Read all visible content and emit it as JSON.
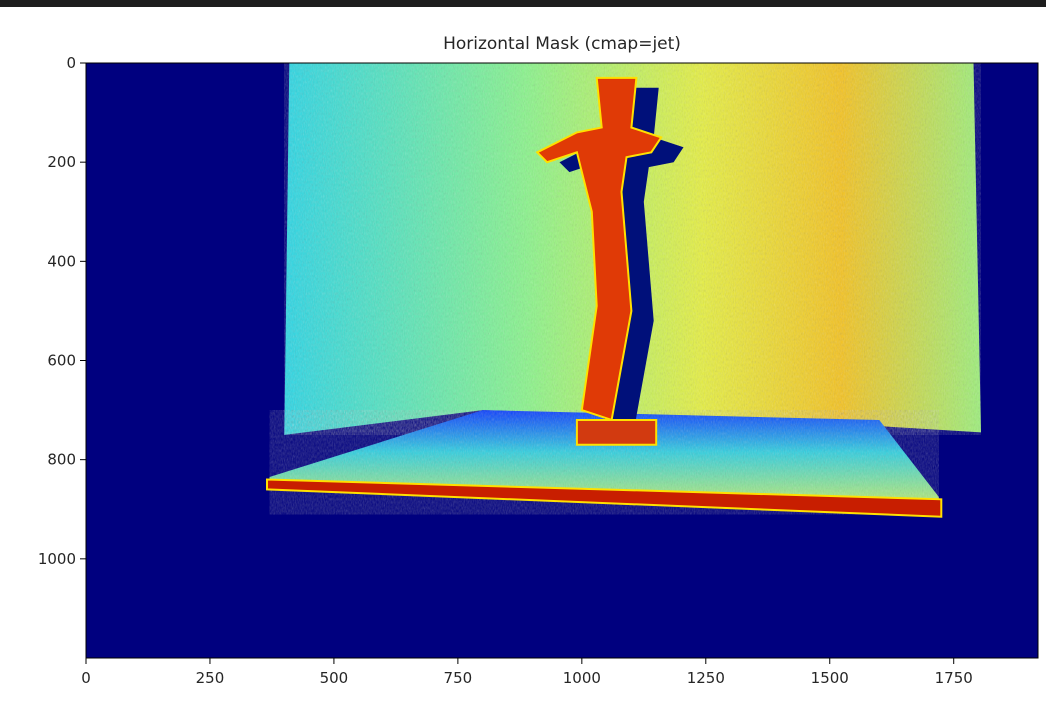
{
  "window": {
    "top_bar_color": "#1e1e1e"
  },
  "chart_data": {
    "type": "heatmap",
    "title": "Horizontal Mask (cmap=jet)",
    "xlabel": "",
    "ylabel": "",
    "colormap": "jet",
    "image_width": 1920,
    "image_height": 1200,
    "xlim": [
      0,
      1920
    ],
    "ylim": [
      1200,
      0
    ],
    "y_axis_inverted": true,
    "x_ticks": [
      0,
      250,
      500,
      750,
      1000,
      1250,
      1500,
      1750
    ],
    "y_ticks": [
      0,
      200,
      400,
      600,
      800,
      1000
    ],
    "x_tick_labels": [
      "0",
      "250",
      "500",
      "750",
      "1000",
      "1250",
      "1500",
      "1750"
    ],
    "y_tick_labels": [
      "0",
      "200",
      "400",
      "600",
      "800",
      "1000"
    ],
    "background_value_color": "#00007f",
    "regions": [
      {
        "name": "back-wall",
        "value_range": "cyan-yellow",
        "polygon": [
          [
            410,
            0
          ],
          [
            1790,
            0
          ],
          [
            1805,
            745
          ],
          [
            1400,
            720
          ],
          [
            800,
            700
          ],
          [
            400,
            750
          ]
        ]
      },
      {
        "name": "floor-surface",
        "value_range": "cyan-yellow",
        "polygon": [
          [
            370,
            835
          ],
          [
            800,
            700
          ],
          [
            1600,
            720
          ],
          [
            1720,
            875
          ],
          [
            1720,
            910
          ],
          [
            370,
            860
          ]
        ]
      },
      {
        "name": "platform-edge",
        "value_range": "red",
        "polygon": [
          [
            365,
            840
          ],
          [
            1725,
            880
          ],
          [
            1725,
            915
          ],
          [
            365,
            860
          ]
        ]
      },
      {
        "name": "figure",
        "value_range": "red-orange",
        "polygon": [
          [
            1030,
            30
          ],
          [
            1110,
            30
          ],
          [
            1100,
            130
          ],
          [
            1160,
            150
          ],
          [
            1140,
            180
          ],
          [
            1090,
            190
          ],
          [
            1080,
            260
          ],
          [
            1100,
            500
          ],
          [
            1060,
            720
          ],
          [
            1000,
            700
          ],
          [
            1030,
            490
          ],
          [
            1020,
            300
          ],
          [
            990,
            180
          ],
          [
            930,
            200
          ],
          [
            910,
            180
          ],
          [
            990,
            140
          ],
          [
            1040,
            130
          ]
        ]
      },
      {
        "name": "base",
        "value_range": "red",
        "polygon": [
          [
            990,
            720
          ],
          [
            1150,
            720
          ],
          [
            1150,
            770
          ],
          [
            990,
            770
          ]
        ]
      }
    ],
    "grid": false
  }
}
